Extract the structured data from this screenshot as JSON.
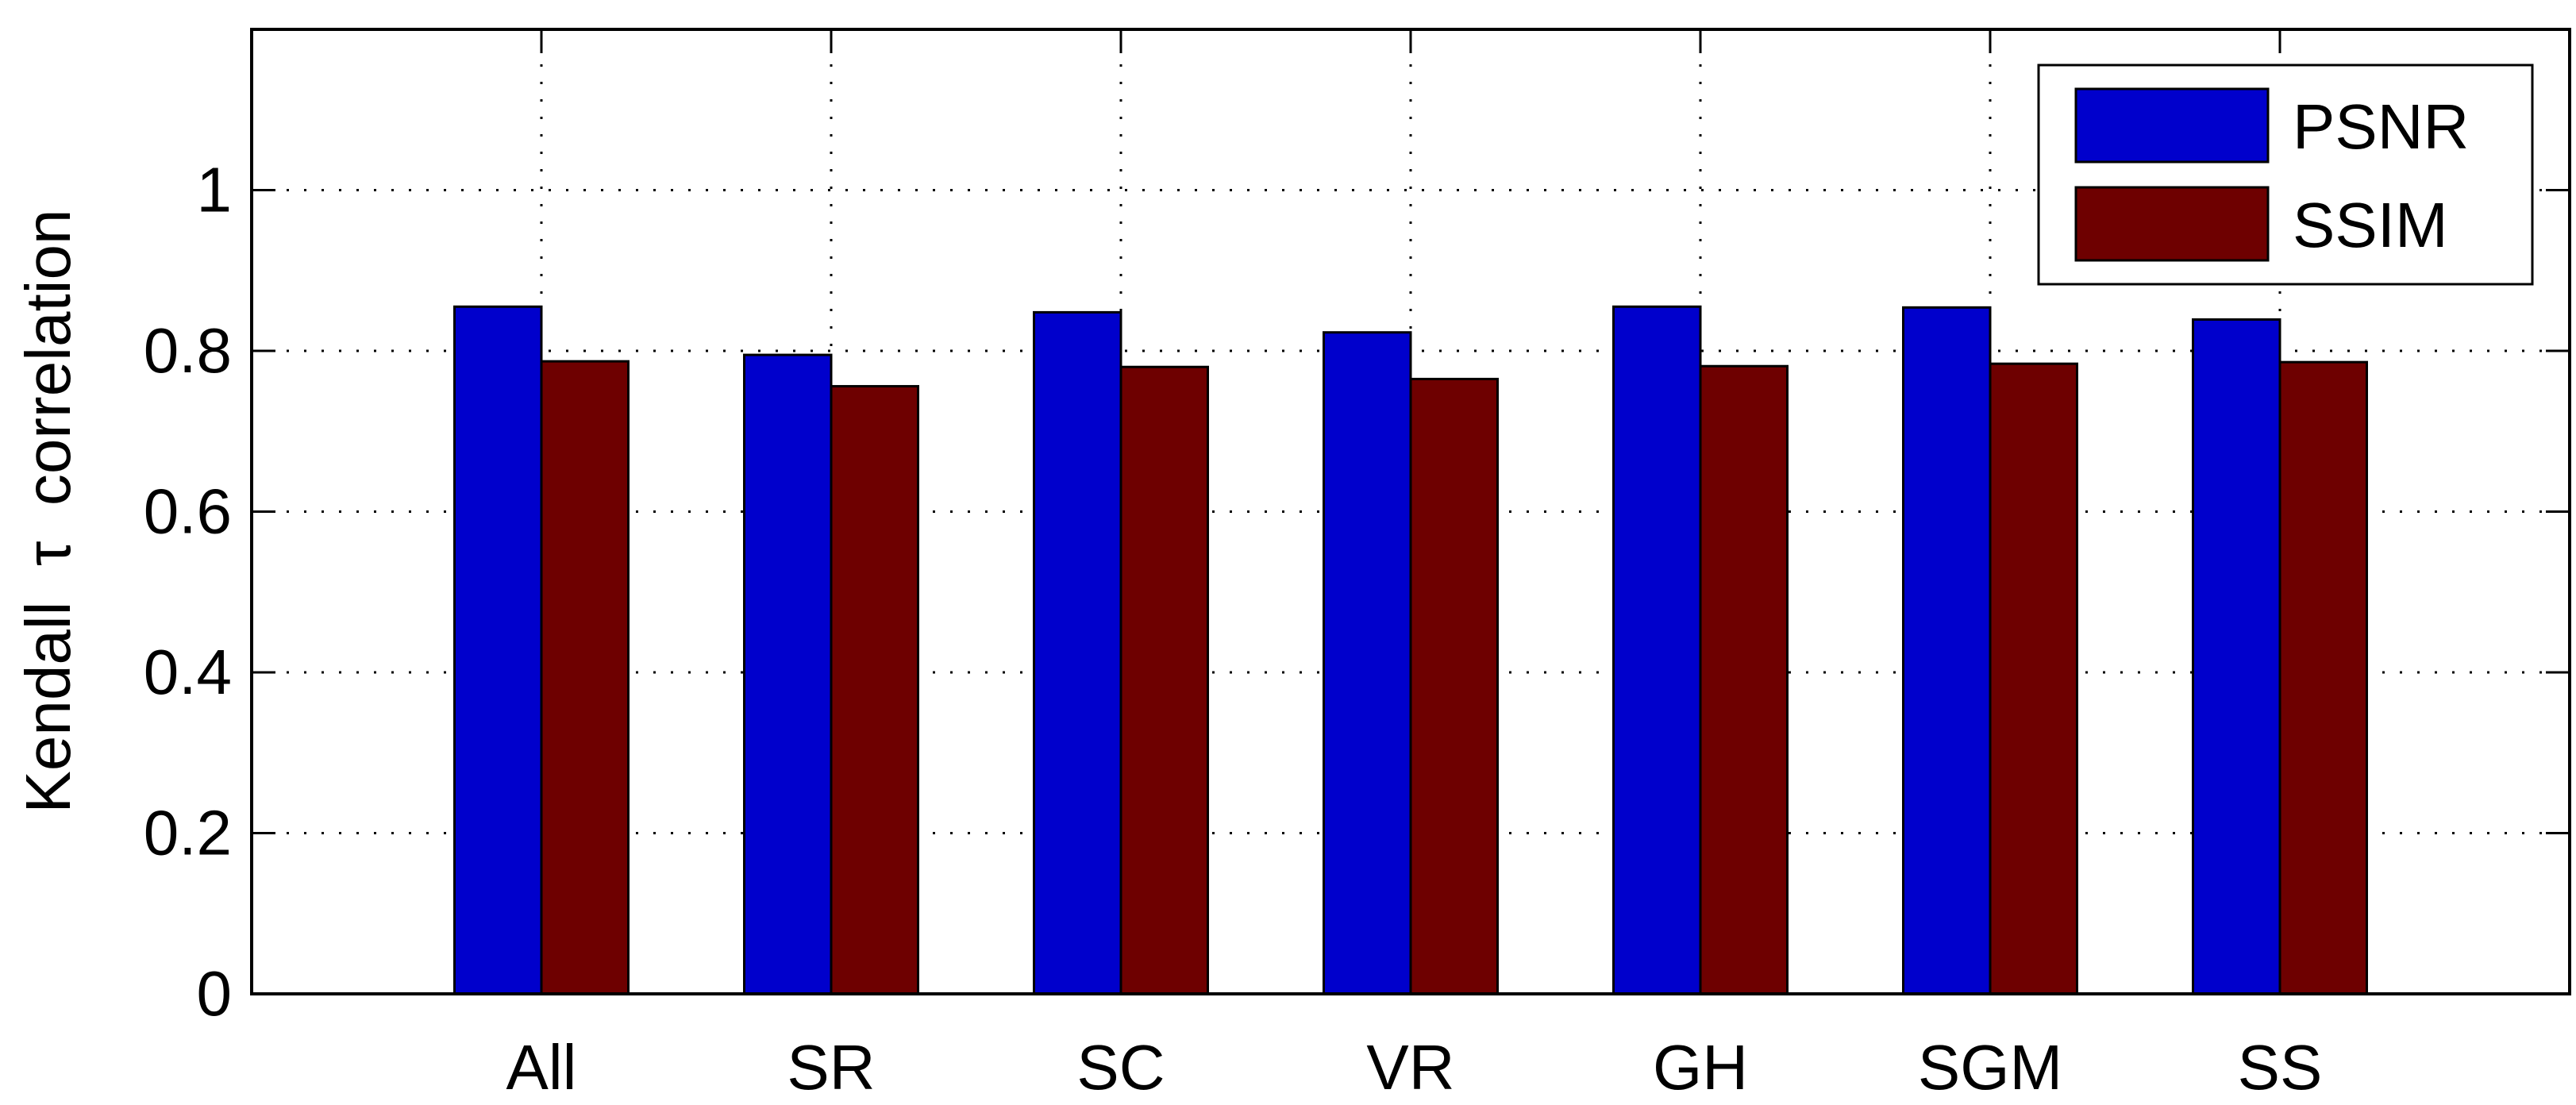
{
  "chart_data": {
    "type": "bar",
    "categories": [
      "All",
      "SR",
      "SC",
      "VR",
      "GH",
      "SGM",
      "SS"
    ],
    "series": [
      {
        "name": "PSNR",
        "color": "#0000CC",
        "values": [
          0.855,
          0.795,
          0.848,
          0.823,
          0.855,
          0.854,
          0.839
        ]
      },
      {
        "name": "SSIM",
        "color": "#6E0000",
        "values": [
          0.787,
          0.756,
          0.78,
          0.765,
          0.781,
          0.784,
          0.786
        ]
      }
    ],
    "title": "",
    "xlabel": "",
    "ylabel": "Kendall  τ  correlation",
    "ylim": [
      0,
      1.2
    ],
    "yticks": [
      0,
      0.2,
      0.4,
      0.6,
      0.8,
      1
    ],
    "ytick_labels": [
      "0",
      "0.2",
      "0.4",
      "0.6",
      "0.8",
      "1"
    ],
    "xlim": [
      0,
      8
    ],
    "grid": true,
    "legend_position": "top-right"
  }
}
